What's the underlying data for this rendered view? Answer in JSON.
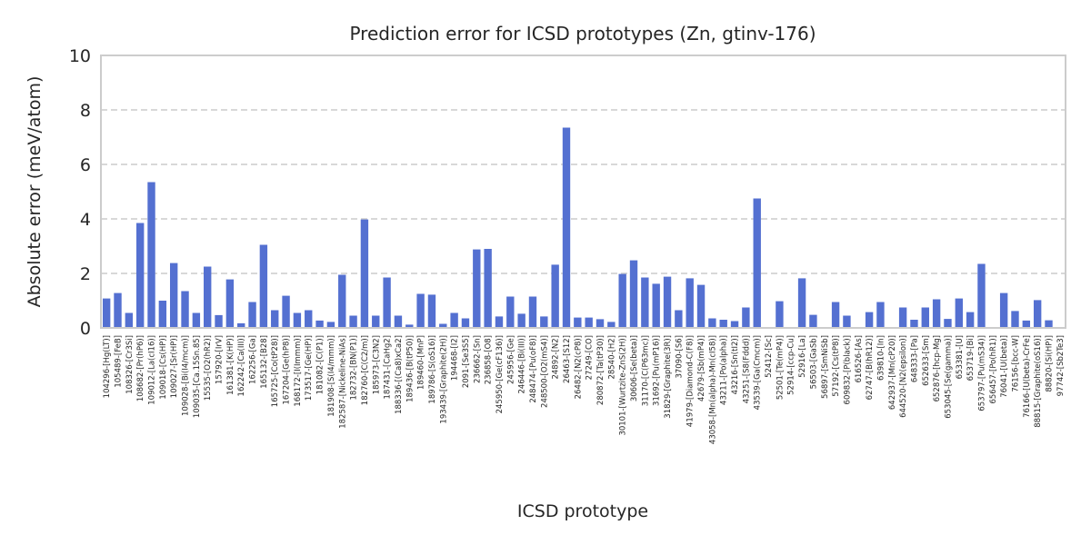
{
  "chart_data": {
    "type": "bar",
    "title": "Prediction error for ICSD prototypes (Zn, gtinv-176)",
    "xlabel": "ICSD prototype",
    "ylabel": "Absolute error (meV/atom)",
    "ylim": [
      0,
      10
    ],
    "yticks": [
      "0",
      "2",
      "4",
      "6",
      "8",
      "10"
    ],
    "grid": true,
    "bar_color": "#5470d1",
    "categories": [
      "104296-[Hg(LT)]",
      "105489-[FeB]",
      "108326-[Cr3Si]",
      "108682-[Pr(hP6)]",
      "109012-[La(cI16)]",
      "109018-[Cs(HP)]",
      "109027-[Sr(HP)]",
      "109028-[Bi(I4/mcm)]",
      "109035-[Ca.15Sn.85]",
      "15535-[O2(hR2)]",
      "157920-[IrV]",
      "161381-[K(HP)]",
      "162242-[Ca(III)]",
      "162256-[Ga]",
      "165132-[B28]",
      "165725-[Co(tP28)]",
      "167204-[Ge(hP8)]",
      "168172-[I(Immm)]",
      "173517-[Ge(HP)]",
      "181082-[C(P1)]",
      "181908-[S(I4/mmm)]",
      "182587-[Nickeline-NiAs]",
      "182732-[BN(P1)]",
      "182760-[C(C2/m)]",
      "185973-[C3N2]",
      "187431-[CaHg2]",
      "188336-[(Ca8)xCa2]",
      "189436-[B(tP50)]",
      "189460-[MnP]",
      "189786-[S(oS16)]",
      "193439-[Graphite(2H)]",
      "194468-[I2]",
      "2091-[Se3S5]",
      "236662-[Sn]",
      "236858-[O8]",
      "245950-[Ge(cF136)]",
      "245956-[Ge]",
      "246446-[Bi(III)]",
      "248474-[Pu(oF8)]",
      "248500-[O2(mS4)]",
      "24892-[N2]",
      "26463-[S12]",
      "26482-[N2(cP8)]",
      "27249-[CO]",
      "280872-[Ta(tP30)]",
      "28540-[H2]",
      "30101-[Wurtzite-ZnS(2H)]",
      "30606-[Se(beta)]",
      "31170-[C(P63mc)]",
      "31692-[Pu(mP16)]",
      "31829-[Graphite(3R)]",
      "37090-[S6]",
      "41979-[Diamond-C(F8)]",
      "42679-[Sb(mP4)]",
      "43058-[Mn(alpha)-Mn(cI58)]",
      "43211-[Po(alpha)]",
      "43216-[Sn(tI2)]",
      "43251-[S8(Fddd)]",
      "43539-[Ga(Cmcm)]",
      "52412-[Sc]",
      "52501-[Te(mP4)]",
      "52914-[ccp-Cu]",
      "52916-[La]",
      "56503-[GaSb]",
      "56897-[SmNiSb]",
      "57192-[Cs(tP8)]",
      "609832-[P(black)]",
      "616526-[As]",
      "62747-[B(hR12)]",
      "639810-[In]",
      "642937-[Mn(cP20)]",
      "644520-[N2(epsilon)]",
      "648333-[Pa]",
      "652633-[Sm]",
      "652876-[hcp-Mg]",
      "653045-[Se(gamma)]",
      "653381-[U]",
      "653719-[Bi]",
      "653797-[Pu(mS34)]",
      "656457-[Po(hR1)]",
      "76041-[U(beta)]",
      "76156-[bcc-W]",
      "76166-[U(beta)-CrFe]",
      "88815-[Graphite(oS16)]",
      "88820-[Si(HP)]",
      "97742-[Sb2Te3]"
    ],
    "values": [
      1.08,
      1.28,
      0.55,
      3.85,
      5.35,
      1.0,
      2.38,
      1.35,
      0.55,
      2.25,
      0.47,
      1.78,
      0.17,
      0.95,
      3.05,
      0.65,
      1.18,
      0.55,
      0.65,
      0.27,
      0.22,
      1.95,
      0.45,
      3.98,
      0.45,
      1.85,
      0.45,
      0.12,
      1.25,
      1.22,
      0.15,
      0.55,
      0.35,
      2.88,
      2.9,
      0.42,
      1.15,
      0.52,
      1.15,
      0.42,
      2.32,
      7.35,
      0.38,
      0.38,
      0.32,
      0.22,
      1.98,
      2.48,
      1.85,
      1.62,
      1.88,
      0.65,
      1.82,
      1.58,
      0.35,
      0.3,
      0.25,
      0.75,
      4.75,
      0.0,
      0.98,
      0.0,
      1.82,
      0.48,
      0.0,
      0.95,
      0.45,
      0.0,
      0.58,
      0.95,
      0.0,
      0.75,
      0.3,
      0.75,
      1.05,
      0.33,
      1.08,
      0.58,
      2.35,
      0.0,
      1.28,
      0.62,
      0.27,
      1.02,
      0.28,
      0.0
    ]
  }
}
